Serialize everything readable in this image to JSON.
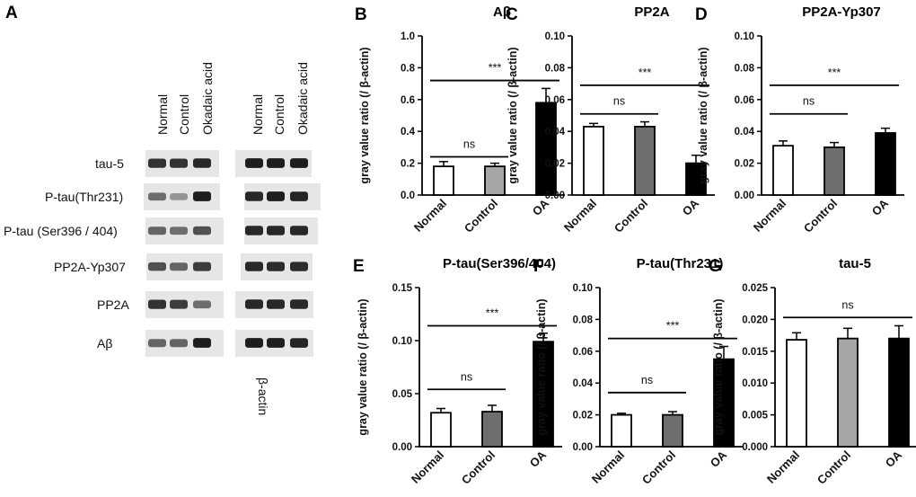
{
  "panel_a": {
    "letter": "A",
    "lane_labels": [
      "Normal",
      "Control",
      "Okadaic acid"
    ],
    "row_labels": [
      "tau-5",
      "P-tau(Thr231)",
      "P-tau (Ser396 / 404)",
      "PP2A-Yp307",
      "PP2A",
      "Aβ"
    ],
    "loading_label": "β-actin",
    "band_intensity": [
      {
        "target": [
          0.85,
          0.85,
          0.9
        ],
        "actin": [
          0.95,
          0.95,
          0.95
        ]
      },
      {
        "target": [
          0.55,
          0.35,
          0.95
        ],
        "actin": [
          0.9,
          0.95,
          0.92
        ]
      },
      {
        "target": [
          0.6,
          0.55,
          0.7
        ],
        "actin": [
          0.9,
          0.9,
          0.9
        ]
      },
      {
        "target": [
          0.7,
          0.6,
          0.8
        ],
        "actin": [
          0.9,
          0.88,
          0.88
        ]
      },
      {
        "target": [
          0.85,
          0.8,
          0.55
        ],
        "actin": [
          0.9,
          0.9,
          0.9
        ]
      },
      {
        "target": [
          0.6,
          0.6,
          0.95
        ],
        "actin": [
          0.95,
          0.95,
          0.92
        ]
      }
    ]
  },
  "chart_data": [
    {
      "letter": "B",
      "type": "bar",
      "title": "Aβ",
      "ylabel": "gray value ratio (/ β-actin)",
      "categories": [
        "Normal",
        "Control",
        "OA"
      ],
      "values": [
        0.18,
        0.18,
        0.58
      ],
      "errors": [
        0.03,
        0.02,
        0.09
      ],
      "bar_colors": [
        "#ffffff",
        "#a6a6a6",
        "#000000"
      ],
      "ylim": [
        0,
        1.0
      ],
      "yticks": [
        "0.0",
        "0.2",
        "0.4",
        "0.6",
        "0.8",
        "1.0"
      ],
      "significance": [
        {
          "label": "ns",
          "from": 0,
          "to": 1,
          "y": 0.24
        },
        {
          "label": "***",
          "from": 0,
          "to": 2,
          "y": 0.72
        }
      ]
    },
    {
      "letter": "C",
      "type": "bar",
      "title": "PP2A",
      "ylabel": "gray value ratio (/ β-actin)",
      "categories": [
        "Normal",
        "Control",
        "OA"
      ],
      "values": [
        0.043,
        0.043,
        0.02
      ],
      "errors": [
        0.002,
        0.003,
        0.005
      ],
      "bar_colors": [
        "#ffffff",
        "#6e6e6e",
        "#000000"
      ],
      "ylim": [
        0,
        0.1
      ],
      "yticks": [
        "0.00",
        "0.02",
        "0.04",
        "0.06",
        "0.08",
        "0.10"
      ],
      "significance": [
        {
          "label": "ns",
          "from": 0,
          "to": 1,
          "y": 0.051
        },
        {
          "label": "***",
          "from": 0,
          "to": 2,
          "y": 0.069
        }
      ]
    },
    {
      "letter": "D",
      "type": "bar",
      "title": "PP2A-Yp307",
      "ylabel": "gray value ratio (/ β-actin)",
      "categories": [
        "Normal",
        "Control",
        "OA"
      ],
      "values": [
        0.031,
        0.03,
        0.039
      ],
      "errors": [
        0.003,
        0.003,
        0.003
      ],
      "bar_colors": [
        "#ffffff",
        "#6e6e6e",
        "#000000"
      ],
      "ylim": [
        0,
        0.1
      ],
      "yticks": [
        "0.00",
        "0.02",
        "0.04",
        "0.06",
        "0.08",
        "0.10"
      ],
      "significance": [
        {
          "label": "ns",
          "from": 0,
          "to": 1,
          "y": 0.051
        },
        {
          "label": "***",
          "from": 0,
          "to": 2,
          "y": 0.069
        }
      ]
    },
    {
      "letter": "E",
      "type": "bar",
      "title": "P-tau(Ser396/404)",
      "ylabel": "gray value ratio (/ β-actin)",
      "categories": [
        "Normal",
        "Control",
        "OA"
      ],
      "values": [
        0.032,
        0.033,
        0.099
      ],
      "errors": [
        0.004,
        0.006,
        0.008
      ],
      "bar_colors": [
        "#ffffff",
        "#6e6e6e",
        "#000000"
      ],
      "ylim": [
        0,
        0.15
      ],
      "yticks": [
        "0.00",
        "0.05",
        "0.10",
        "0.15"
      ],
      "significance": [
        {
          "label": "ns",
          "from": 0,
          "to": 1,
          "y": 0.054
        },
        {
          "label": "***",
          "from": 0,
          "to": 2,
          "y": 0.114
        }
      ]
    },
    {
      "letter": "F",
      "type": "bar",
      "title": "P-tau(Thr231)",
      "ylabel": "gray value ratio (/ β-actin)",
      "categories": [
        "Normal",
        "Control",
        "OA"
      ],
      "values": [
        0.02,
        0.02,
        0.055
      ],
      "errors": [
        0.001,
        0.002,
        0.008
      ],
      "bar_colors": [
        "#ffffff",
        "#6e6e6e",
        "#000000"
      ],
      "ylim": [
        0,
        0.1
      ],
      "yticks": [
        "0.00",
        "0.02",
        "0.04",
        "0.06",
        "0.08",
        "0.10"
      ],
      "significance": [
        {
          "label": "ns",
          "from": 0,
          "to": 1,
          "y": 0.034
        },
        {
          "label": "***",
          "from": 0,
          "to": 2,
          "y": 0.068
        }
      ]
    },
    {
      "letter": "G",
      "type": "bar",
      "title": "tau-5",
      "ylabel": "gray value ratio (/ β-actin)",
      "categories": [
        "Normal",
        "Control",
        "OA"
      ],
      "values": [
        0.0168,
        0.017,
        0.017
      ],
      "errors": [
        0.0011,
        0.0016,
        0.002
      ],
      "bar_colors": [
        "#ffffff",
        "#a6a6a6",
        "#000000"
      ],
      "ylim": [
        0,
        0.025
      ],
      "yticks": [
        "0.000",
        "0.005",
        "0.010",
        "0.015",
        "0.020",
        "0.025"
      ],
      "significance": [
        {
          "label": "ns",
          "from": 0,
          "to": 2,
          "y": 0.0203
        }
      ]
    }
  ]
}
